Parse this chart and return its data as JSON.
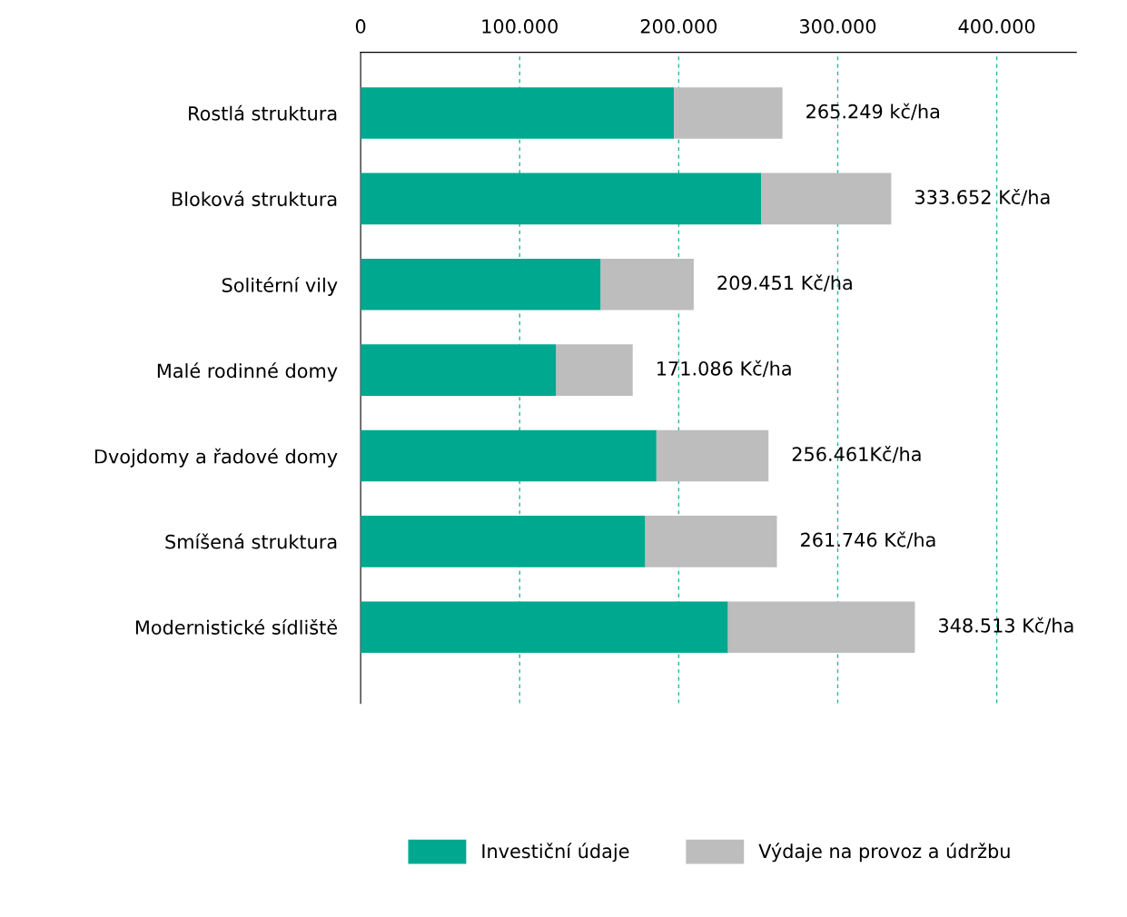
{
  "chart_data": {
    "type": "bar",
    "orientation": "horizontal",
    "stacked": true,
    "categories": [
      "Rostlá struktura",
      "Bloková struktura",
      "Solitérní vily",
      "Malé rodinné domy",
      "Dvojdomy a řadové domy",
      "Smíšená struktura",
      "Modernistické sídliště"
    ],
    "series": [
      {
        "name": "Investiční údaje",
        "color": "#00a88f",
        "values": [
          197000,
          252000,
          151000,
          123000,
          186000,
          179000,
          231000
        ]
      },
      {
        "name": "Výdaje na provoz a údržbu",
        "color": "#bcbdbc",
        "values": [
          68249,
          81652,
          58451,
          48086,
          70461,
          82746,
          117513
        ]
      }
    ],
    "totals": [
      "265.249 kč/ha",
      "333.652 Kč/ha",
      "209.451 Kč/ha",
      "171.086 Kč/ha",
      "256.461Kč/ha",
      "261.746 Kč/ha",
      "348.513 Kč/ha"
    ],
    "xlim": [
      0,
      450000
    ],
    "xticks": [
      {
        "value": 0,
        "label": "0"
      },
      {
        "value": 100000,
        "label": "100.000"
      },
      {
        "value": 200000,
        "label": "200.000"
      },
      {
        "value": 300000,
        "label": "300.000"
      },
      {
        "value": 400000,
        "label": "400.000"
      }
    ],
    "grid": "x",
    "legend": "bottom"
  }
}
